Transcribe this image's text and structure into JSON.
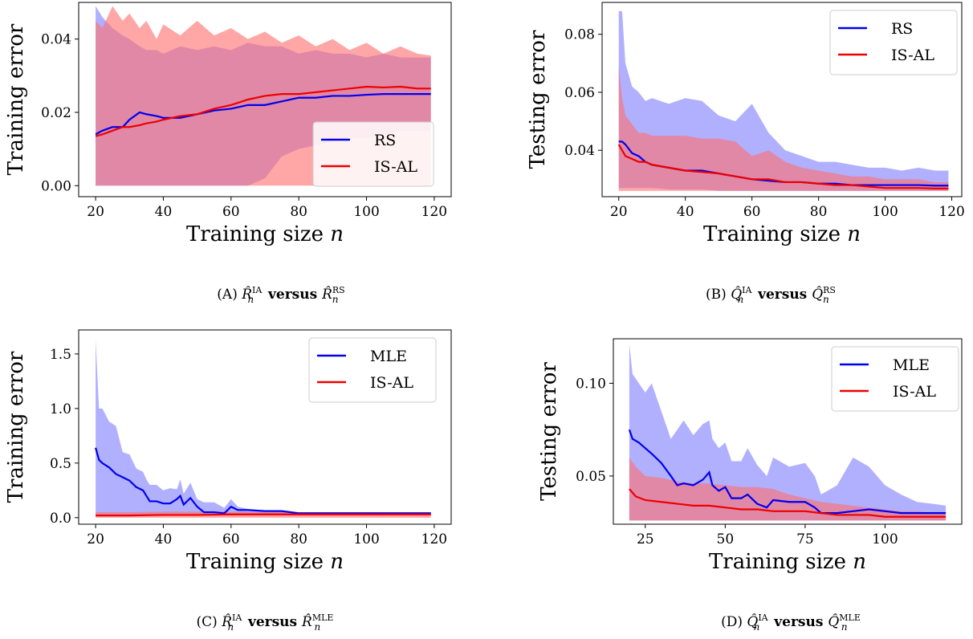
{
  "colors": {
    "blue": "#0000ee",
    "red": "#ee0000",
    "blue_fill": "#8080ff",
    "red_fill": "#ff7070",
    "axis": "#000000"
  },
  "chart_data": [
    {
      "id": "a",
      "type": "area",
      "xlabel": "Training size n",
      "ylabel": "Training error",
      "xlim": [
        15,
        125
      ],
      "ylim": [
        -0.003,
        0.05
      ],
      "xticks": [
        20,
        40,
        60,
        80,
        100,
        120
      ],
      "yticks": [
        0.0,
        0.02,
        0.04
      ],
      "ytick_labels": [
        "0.00",
        "0.02",
        "0.04"
      ],
      "legend_position": "lower-right",
      "caption_prefix": "(A)",
      "caption_lhs": "R̂",
      "caption_lhs_sup": "IA",
      "caption_mid": "versus",
      "caption_rhs": "R̂",
      "caption_rhs_sup": "RS",
      "caption_sub": "n",
      "series": [
        {
          "name": "RS",
          "color": "blue",
          "x": [
            20,
            22,
            25,
            28,
            30,
            33,
            35,
            38,
            40,
            45,
            50,
            55,
            60,
            65,
            70,
            75,
            80,
            85,
            90,
            95,
            100,
            105,
            110,
            115,
            119
          ],
          "y": [
            0.014,
            0.015,
            0.016,
            0.016,
            0.018,
            0.02,
            0.0195,
            0.019,
            0.0185,
            0.0185,
            0.0195,
            0.0205,
            0.021,
            0.022,
            0.022,
            0.023,
            0.024,
            0.024,
            0.0245,
            0.0245,
            0.0248,
            0.025,
            0.025,
            0.025,
            0.025
          ],
          "lower": [
            0.0,
            0.0,
            0.0,
            0.0,
            0.0,
            0.0,
            0.0,
            0.0,
            0.0,
            0.0,
            0.0,
            0.0,
            0.0,
            0.0,
            0.002,
            0.008,
            0.01,
            0.011,
            0.012,
            0.013,
            0.013,
            0.014,
            0.015,
            0.015,
            0.015
          ],
          "upper": [
            0.049,
            0.046,
            0.043,
            0.041,
            0.04,
            0.038,
            0.037,
            0.037,
            0.036,
            0.038,
            0.037,
            0.038,
            0.037,
            0.039,
            0.038,
            0.038,
            0.036,
            0.037,
            0.036,
            0.036,
            0.035,
            0.036,
            0.035,
            0.035,
            0.035
          ]
        },
        {
          "name": "IS-AL",
          "color": "red",
          "x": [
            20,
            22,
            25,
            28,
            30,
            33,
            35,
            38,
            40,
            45,
            50,
            55,
            60,
            65,
            70,
            75,
            80,
            85,
            90,
            95,
            100,
            105,
            110,
            115,
            119
          ],
          "y": [
            0.0135,
            0.014,
            0.015,
            0.016,
            0.016,
            0.0165,
            0.017,
            0.0175,
            0.018,
            0.019,
            0.0195,
            0.021,
            0.022,
            0.0235,
            0.0245,
            0.025,
            0.025,
            0.0255,
            0.026,
            0.0265,
            0.027,
            0.0268,
            0.027,
            0.0265,
            0.0265
          ],
          "lower": [
            0.0,
            0.0,
            0.0,
            0.0,
            0.0,
            0.0,
            0.0,
            0.0,
            0.0,
            0.0,
            0.0,
            0.0,
            0.0,
            0.0,
            0.0,
            0.0,
            0.0,
            0.0,
            0.0,
            0.0,
            0.0,
            0.0,
            0.0,
            0.0,
            0.0
          ],
          "upper": [
            0.045,
            0.043,
            0.049,
            0.045,
            0.047,
            0.043,
            0.045,
            0.04,
            0.044,
            0.041,
            0.045,
            0.041,
            0.043,
            0.04,
            0.042,
            0.039,
            0.041,
            0.038,
            0.04,
            0.037,
            0.039,
            0.036,
            0.038,
            0.036,
            0.0355
          ]
        }
      ]
    },
    {
      "id": "b",
      "type": "area",
      "xlabel": "Training size n",
      "ylabel": "Testing error",
      "xlim": [
        15,
        123
      ],
      "ylim": [
        0.024,
        0.091
      ],
      "xticks": [
        20,
        40,
        60,
        80,
        100,
        120
      ],
      "yticks": [
        0.04,
        0.06,
        0.08
      ],
      "ytick_labels": [
        "0.04",
        "0.06",
        "0.08"
      ],
      "legend_position": "upper-right",
      "caption_prefix": "(B)",
      "caption_lhs": "Q̂",
      "caption_lhs_sup": "IA",
      "caption_mid": "versus",
      "caption_rhs": "Q̂",
      "caption_rhs_sup": "RS",
      "caption_sub": "n",
      "series": [
        {
          "name": "RS",
          "color": "blue",
          "x": [
            20,
            21,
            22,
            24,
            26,
            28,
            30,
            35,
            40,
            45,
            50,
            55,
            60,
            65,
            70,
            75,
            80,
            85,
            90,
            95,
            100,
            105,
            110,
            115,
            119
          ],
          "y": [
            0.043,
            0.043,
            0.042,
            0.039,
            0.038,
            0.036,
            0.035,
            0.034,
            0.033,
            0.033,
            0.032,
            0.031,
            0.03,
            0.0295,
            0.029,
            0.029,
            0.0285,
            0.0285,
            0.028,
            0.028,
            0.028,
            0.028,
            0.028,
            0.0278,
            0.0278
          ],
          "lower": [
            0.027,
            0.027,
            0.027,
            0.027,
            0.027,
            0.027,
            0.027,
            0.0265,
            0.0265,
            0.0265,
            0.026,
            0.026,
            0.026,
            0.026,
            0.026,
            0.026,
            0.026,
            0.026,
            0.026,
            0.026,
            0.026,
            0.026,
            0.026,
            0.026,
            0.026
          ],
          "upper": [
            0.088,
            0.088,
            0.07,
            0.062,
            0.06,
            0.057,
            0.058,
            0.056,
            0.058,
            0.057,
            0.052,
            0.05,
            0.056,
            0.046,
            0.04,
            0.038,
            0.036,
            0.036,
            0.035,
            0.034,
            0.034,
            0.033,
            0.034,
            0.033,
            0.033
          ]
        },
        {
          "name": "IS-AL",
          "color": "red",
          "x": [
            20,
            21,
            22,
            24,
            26,
            28,
            30,
            35,
            40,
            45,
            50,
            55,
            60,
            65,
            70,
            75,
            80,
            85,
            90,
            95,
            100,
            105,
            110,
            115,
            119
          ],
          "y": [
            0.042,
            0.04,
            0.038,
            0.037,
            0.036,
            0.036,
            0.035,
            0.034,
            0.033,
            0.0325,
            0.032,
            0.031,
            0.03,
            0.03,
            0.029,
            0.029,
            0.0285,
            0.028,
            0.028,
            0.0275,
            0.027,
            0.027,
            0.027,
            0.0268,
            0.0268
          ],
          "lower": [
            0.026,
            0.026,
            0.026,
            0.026,
            0.026,
            0.026,
            0.026,
            0.026,
            0.026,
            0.026,
            0.026,
            0.026,
            0.026,
            0.026,
            0.026,
            0.026,
            0.026,
            0.026,
            0.026,
            0.026,
            0.026,
            0.026,
            0.026,
            0.026,
            0.026
          ],
          "upper": [
            0.069,
            0.058,
            0.052,
            0.049,
            0.046,
            0.046,
            0.045,
            0.045,
            0.045,
            0.044,
            0.044,
            0.043,
            0.038,
            0.04,
            0.036,
            0.034,
            0.033,
            0.032,
            0.031,
            0.031,
            0.03,
            0.03,
            0.03,
            0.029,
            0.029
          ]
        }
      ]
    },
    {
      "id": "c",
      "type": "area",
      "xlabel": "Training size n",
      "ylabel": "Training error",
      "xlim": [
        15,
        125
      ],
      "ylim": [
        -0.06,
        1.72
      ],
      "xticks": [
        20,
        40,
        60,
        80,
        100,
        120
      ],
      "yticks": [
        0.0,
        0.5,
        1.0,
        1.5
      ],
      "ytick_labels": [
        "0.0",
        "0.5",
        "1.0",
        "1.5"
      ],
      "legend_position": "upper-right",
      "caption_prefix": "(C)",
      "caption_lhs": "R̂",
      "caption_lhs_sup": "IA",
      "caption_mid": "versus",
      "caption_rhs": "R̂",
      "caption_rhs_sup": "MLE",
      "caption_sub": "n",
      "series": [
        {
          "name": "MLE",
          "color": "blue",
          "x": [
            20,
            21,
            22,
            24,
            26,
            28,
            30,
            32,
            34,
            35,
            36,
            38,
            40,
            42,
            44,
            45,
            46,
            48,
            50,
            52,
            55,
            58,
            60,
            62,
            65,
            70,
            75,
            80,
            85,
            90,
            95,
            100,
            105,
            110,
            115,
            119
          ],
          "y": [
            0.64,
            0.53,
            0.5,
            0.46,
            0.4,
            0.37,
            0.34,
            0.28,
            0.25,
            0.2,
            0.15,
            0.15,
            0.13,
            0.13,
            0.17,
            0.2,
            0.12,
            0.18,
            0.1,
            0.05,
            0.05,
            0.04,
            0.1,
            0.07,
            0.07,
            0.06,
            0.06,
            0.04,
            0.04,
            0.04,
            0.04,
            0.04,
            0.04,
            0.04,
            0.04,
            0.04
          ],
          "lower": [
            0.02,
            0.02,
            0.02,
            0.02,
            0.02,
            0.02,
            0.02,
            0.02,
            0.02,
            0.02,
            0.02,
            0.02,
            0.02,
            0.02,
            0.02,
            0.02,
            0.02,
            0.02,
            0.02,
            0.02,
            0.02,
            0.02,
            0.02,
            0.02,
            0.02,
            0.02,
            0.02,
            0.02,
            0.02,
            0.02,
            0.02,
            0.02,
            0.02,
            0.02,
            0.02,
            0.02
          ],
          "upper": [
            1.63,
            1.0,
            1.0,
            0.88,
            0.84,
            0.6,
            0.58,
            0.45,
            0.42,
            0.35,
            0.3,
            0.3,
            0.25,
            0.27,
            0.26,
            0.35,
            0.22,
            0.32,
            0.17,
            0.14,
            0.14,
            0.09,
            0.17,
            0.1,
            0.08,
            0.07,
            0.07,
            0.05,
            0.05,
            0.05,
            0.05,
            0.05,
            0.05,
            0.05,
            0.05,
            0.05
          ]
        },
        {
          "name": "IS-AL",
          "color": "red",
          "x": [
            20,
            30,
            40,
            50,
            60,
            70,
            80,
            90,
            100,
            110,
            119
          ],
          "y": [
            0.02,
            0.02,
            0.025,
            0.025,
            0.03,
            0.03,
            0.03,
            0.03,
            0.03,
            0.03,
            0.03
          ],
          "lower": [
            0.0,
            0.0,
            0.0,
            0.0,
            0.0,
            0.0,
            0.0,
            0.0,
            0.0,
            0.0,
            0.0
          ],
          "upper": [
            0.05,
            0.05,
            0.055,
            0.055,
            0.055,
            0.05,
            0.05,
            0.05,
            0.05,
            0.045,
            0.045
          ]
        }
      ]
    },
    {
      "id": "d",
      "type": "area",
      "xlabel": "Training size n",
      "ylabel": "Testing error",
      "xlim": [
        15,
        124
      ],
      "ylim": [
        0.024,
        0.124
      ],
      "xticks": [
        25,
        50,
        75,
        100
      ],
      "yticks": [
        0.05,
        0.1
      ],
      "ytick_labels": [
        "0.05",
        "0.10"
      ],
      "legend_position": "upper-right",
      "caption_prefix": "(D)",
      "caption_lhs": "Q̂",
      "caption_lhs_sup": "IA",
      "caption_mid": "versus",
      "caption_rhs": "Q̂",
      "caption_rhs_sup": "MLE",
      "caption_sub": "n",
      "series": [
        {
          "name": "MLE",
          "color": "blue",
          "x": [
            20,
            21,
            23,
            25,
            27,
            30,
            33,
            35,
            37,
            40,
            43,
            45,
            46,
            48,
            50,
            52,
            55,
            57,
            60,
            63,
            65,
            70,
            75,
            78,
            80,
            85,
            90,
            95,
            100,
            105,
            110,
            115,
            119
          ],
          "y": [
            0.075,
            0.07,
            0.068,
            0.065,
            0.062,
            0.057,
            0.05,
            0.045,
            0.046,
            0.045,
            0.048,
            0.052,
            0.045,
            0.042,
            0.044,
            0.038,
            0.038,
            0.04,
            0.035,
            0.033,
            0.037,
            0.036,
            0.036,
            0.033,
            0.03,
            0.03,
            0.031,
            0.032,
            0.031,
            0.03,
            0.03,
            0.03,
            0.03
          ],
          "lower": [
            0.026,
            0.026,
            0.026,
            0.026,
            0.026,
            0.026,
            0.026,
            0.026,
            0.026,
            0.026,
            0.026,
            0.026,
            0.026,
            0.026,
            0.026,
            0.026,
            0.026,
            0.026,
            0.026,
            0.026,
            0.026,
            0.026,
            0.026,
            0.026,
            0.026,
            0.026,
            0.026,
            0.026,
            0.026,
            0.026,
            0.026,
            0.026,
            0.026
          ],
          "upper": [
            0.121,
            0.105,
            0.1,
            0.095,
            0.1,
            0.085,
            0.07,
            0.075,
            0.08,
            0.072,
            0.078,
            0.08,
            0.07,
            0.065,
            0.068,
            0.058,
            0.058,
            0.065,
            0.056,
            0.05,
            0.06,
            0.055,
            0.057,
            0.05,
            0.04,
            0.045,
            0.06,
            0.055,
            0.045,
            0.04,
            0.036,
            0.035,
            0.034
          ]
        },
        {
          "name": "IS-AL",
          "color": "red",
          "x": [
            20,
            22,
            25,
            30,
            35,
            40,
            45,
            50,
            55,
            60,
            65,
            70,
            75,
            80,
            85,
            90,
            95,
            100,
            105,
            110,
            115,
            119
          ],
          "y": [
            0.043,
            0.039,
            0.037,
            0.036,
            0.035,
            0.034,
            0.034,
            0.033,
            0.032,
            0.032,
            0.031,
            0.031,
            0.031,
            0.03,
            0.029,
            0.029,
            0.029,
            0.028,
            0.028,
            0.028,
            0.028,
            0.028
          ],
          "lower": [
            0.026,
            0.026,
            0.026,
            0.026,
            0.026,
            0.026,
            0.026,
            0.026,
            0.026,
            0.026,
            0.026,
            0.026,
            0.026,
            0.026,
            0.026,
            0.026,
            0.026,
            0.026,
            0.026,
            0.026,
            0.026,
            0.026
          ],
          "upper": [
            0.06,
            0.055,
            0.05,
            0.049,
            0.047,
            0.046,
            0.046,
            0.045,
            0.044,
            0.044,
            0.043,
            0.04,
            0.038,
            0.036,
            0.035,
            0.034,
            0.033,
            0.032,
            0.031,
            0.031,
            0.03,
            0.03
          ]
        }
      ]
    }
  ]
}
